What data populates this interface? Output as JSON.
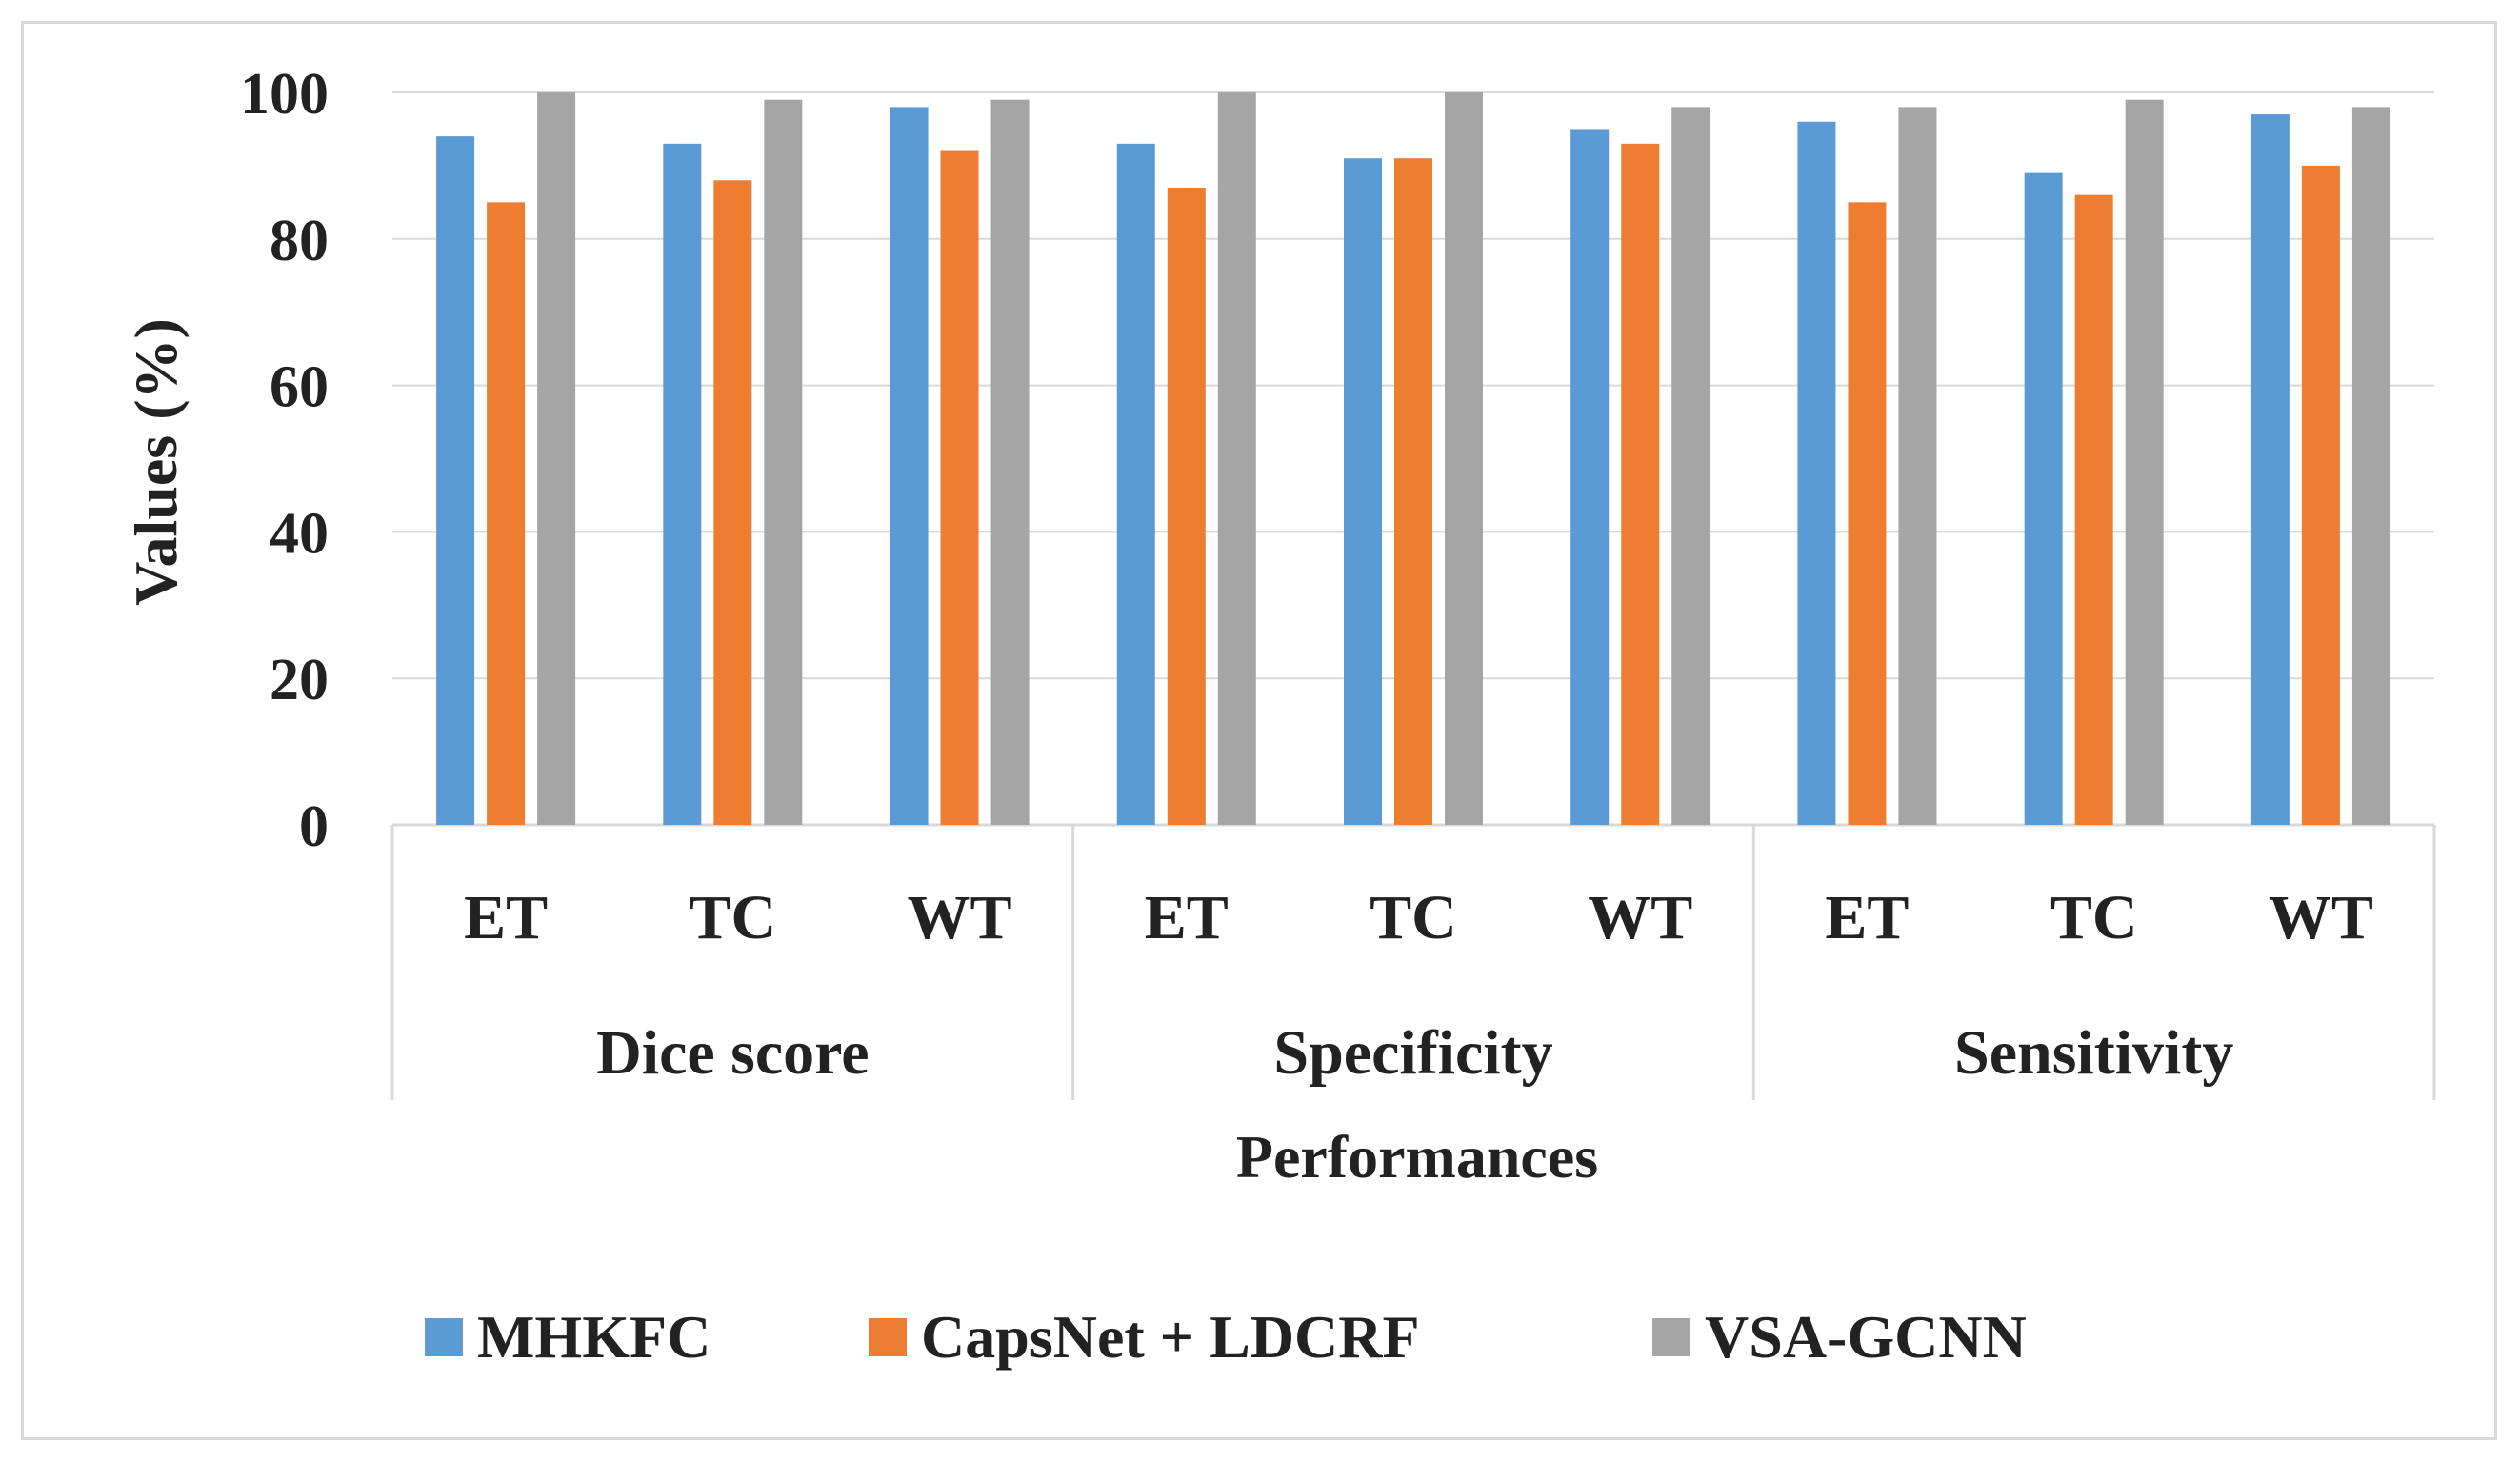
{
  "chart_data": {
    "type": "bar",
    "title": "",
    "xlabel": "Performances",
    "ylabel": "Values (%)",
    "ylim": [
      0,
      100
    ],
    "yticks": [
      "0",
      "20",
      "40",
      "60",
      "80",
      "100"
    ],
    "groups": [
      {
        "label": "Dice score",
        "categories": [
          "ET",
          "TC",
          "WT"
        ]
      },
      {
        "label": "Specificity",
        "categories": [
          "ET",
          "TC",
          "WT"
        ]
      },
      {
        "label": "Sensitivity",
        "categories": [
          "ET",
          "TC",
          "WT"
        ]
      }
    ],
    "series": [
      {
        "name": "MHKFC",
        "color": "#5b9bd5",
        "values": [
          94,
          93,
          98,
          93,
          91,
          95,
          96,
          89,
          97
        ]
      },
      {
        "name": "CapsNet + LDCRF",
        "color": "#ed7d31",
        "values": [
          85,
          88,
          92,
          87,
          91,
          93,
          85,
          86,
          90
        ]
      },
      {
        "name": "VSA-GCNN",
        "color": "#a5a5a5",
        "values": [
          100,
          99,
          99,
          100,
          100,
          98,
          98,
          99,
          98
        ]
      }
    ],
    "grid": true,
    "legend_position": "bottom"
  }
}
